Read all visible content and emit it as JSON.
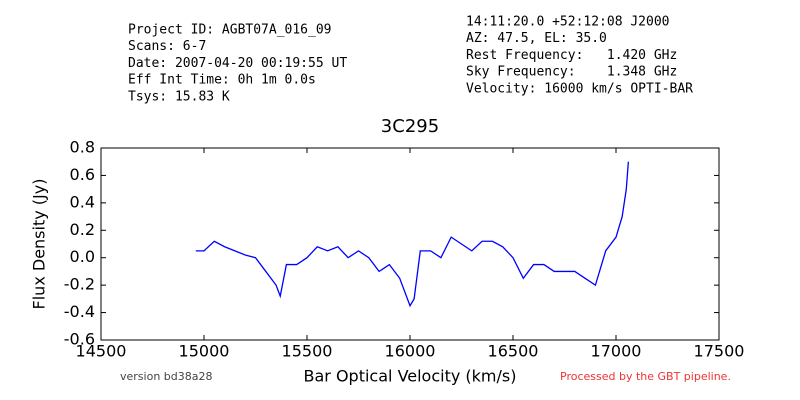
{
  "chart_data": {
    "type": "line",
    "title": "3C295",
    "header_left": [
      "Project ID: AGBT07A_016_09",
      "Scans: 6-7",
      "Date: 2007-04-20 00:19:55 UT",
      "Eff Int Time: 0h 1m 0.0s",
      "Tsys: 15.83 K"
    ],
    "header_right": [
      "14:11:20.0 +52:12:08 J2000",
      "AZ: 47.5, EL: 35.0",
      "Rest Frequency:   1.420 GHz",
      "Sky Frequency:    1.348 GHz",
      "Velocity: 16000 km/s OPTI-BAR"
    ],
    "xlabel": "Bar Optical Velocity (km/s)",
    "ylabel": "Flux Density (Jy)",
    "footer_left": "version bd38a28",
    "footer_right": "Processed by the GBT pipeline.",
    "x": [
      14960,
      15000,
      15050,
      15100,
      15150,
      15200,
      15250,
      15300,
      15350,
      15370,
      15400,
      15450,
      15500,
      15550,
      15600,
      15650,
      15700,
      15750,
      15800,
      15850,
      15900,
      15950,
      16000,
      16020,
      16050,
      16100,
      16150,
      16200,
      16250,
      16300,
      16350,
      16400,
      16450,
      16500,
      16550,
      16600,
      16650,
      16700,
      16750,
      16800,
      16850,
      16900,
      16950,
      17000,
      17030,
      17050,
      17060
    ],
    "series": [
      {
        "name": "3C295",
        "color": "#0000ff",
        "values": [
          0.05,
          0.05,
          0.12,
          0.08,
          0.05,
          0.02,
          0.0,
          -0.1,
          -0.2,
          -0.28,
          -0.05,
          -0.05,
          0.0,
          0.08,
          0.05,
          0.08,
          0.0,
          0.05,
          0.0,
          -0.1,
          -0.05,
          -0.15,
          -0.35,
          -0.3,
          0.05,
          0.05,
          0.0,
          0.15,
          0.1,
          0.05,
          0.12,
          0.12,
          0.08,
          0.0,
          -0.15,
          -0.05,
          -0.05,
          -0.1,
          -0.1,
          -0.1,
          -0.15,
          -0.2,
          0.05,
          0.15,
          0.3,
          0.5,
          0.7
        ]
      }
    ],
    "xlim": [
      14500,
      17500
    ],
    "xticks": [
      14500,
      15000,
      15500,
      16000,
      16500,
      17000,
      17500
    ],
    "ylim": [
      -0.6,
      0.8
    ],
    "yticks": [
      -0.6,
      -0.4,
      -0.2,
      {
        "value": 0,
        "label": "0.0"
      },
      0.2,
      0.4,
      0.6,
      0.8
    ],
    "grid": false
  }
}
